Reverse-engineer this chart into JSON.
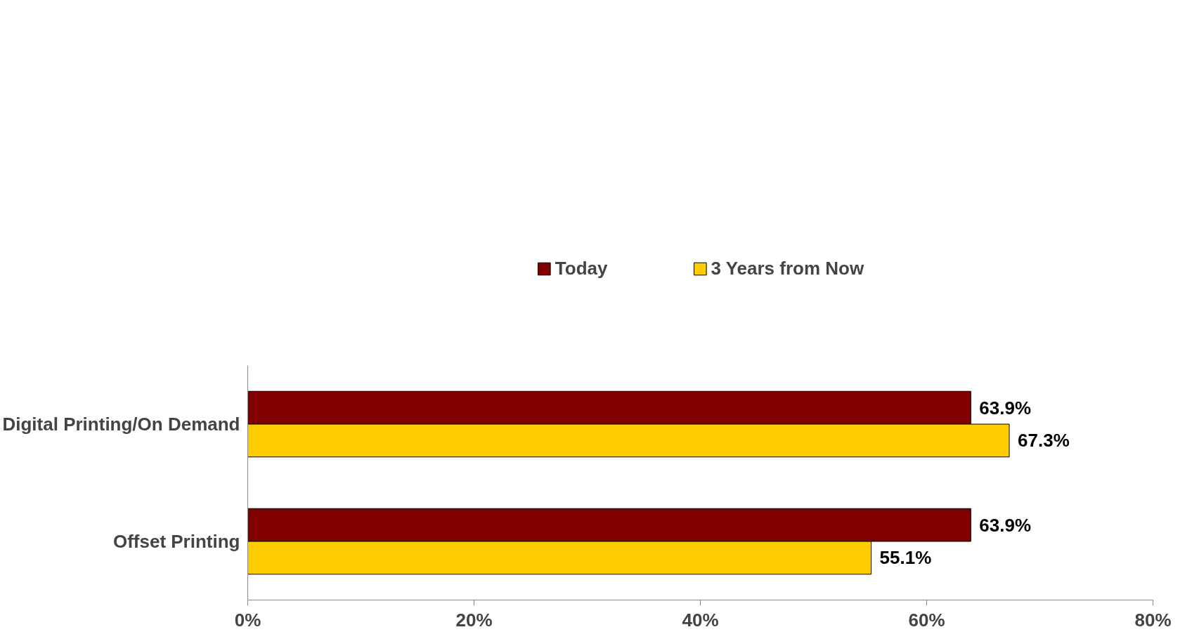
{
  "chart_data": {
    "type": "bar",
    "orientation": "horizontal",
    "categories": [
      "Digital Printing/On Demand",
      "Offset Printing"
    ],
    "series": [
      {
        "name": "Today",
        "color": "#800000",
        "values": [
          63.9,
          63.9
        ],
        "value_labels": [
          "63.9%",
          "63.9%"
        ]
      },
      {
        "name": "3 Years from Now",
        "color": "#ffcc00",
        "values": [
          67.3,
          55.1
        ],
        "value_labels": [
          "67.3%",
          "55.1%"
        ]
      }
    ],
    "xlim": [
      0,
      80
    ],
    "xticks": [
      {
        "value": 0,
        "label": "0%"
      },
      {
        "value": 20,
        "label": "20%"
      },
      {
        "value": 40,
        "label": "40%"
      },
      {
        "value": 60,
        "label": "60%"
      },
      {
        "value": 80,
        "label": "80%"
      }
    ],
    "grid": false,
    "legend": "top"
  }
}
